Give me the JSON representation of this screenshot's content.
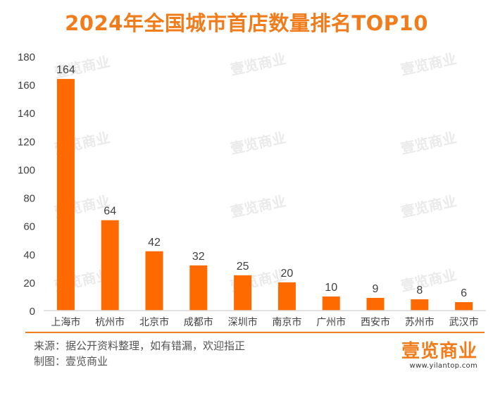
{
  "title": "2024年全国城市首店数量排名TOP10",
  "watermark": "壹览商业",
  "footer": {
    "source": "来源：据公开资料整理，如有错漏，欢迎指正",
    "maker": "制图：壹览商业"
  },
  "logo": {
    "brand": "壹览商业",
    "url": "www.yilantop.com"
  },
  "colors": {
    "accent": "#f07c1c",
    "bar": "#ff6a00",
    "axis": "#d9d9d9",
    "text": "#404040"
  },
  "chart_data": {
    "type": "bar",
    "title": "2024年全国城市首店数量排名TOP10",
    "categories": [
      "上海市",
      "杭州市",
      "北京市",
      "成都市",
      "深圳市",
      "南京市",
      "广州市",
      "西安市",
      "苏州市",
      "武汉市"
    ],
    "values": [
      164,
      64,
      42,
      32,
      25,
      20,
      10,
      9,
      8,
      6
    ],
    "yticks": [
      "0",
      "20",
      "40",
      "60",
      "80",
      "100",
      "120",
      "140",
      "160",
      "180"
    ],
    "ylim": [
      0,
      180
    ],
    "xlabel": "",
    "ylabel": "",
    "grid": false,
    "data_labels": true
  }
}
